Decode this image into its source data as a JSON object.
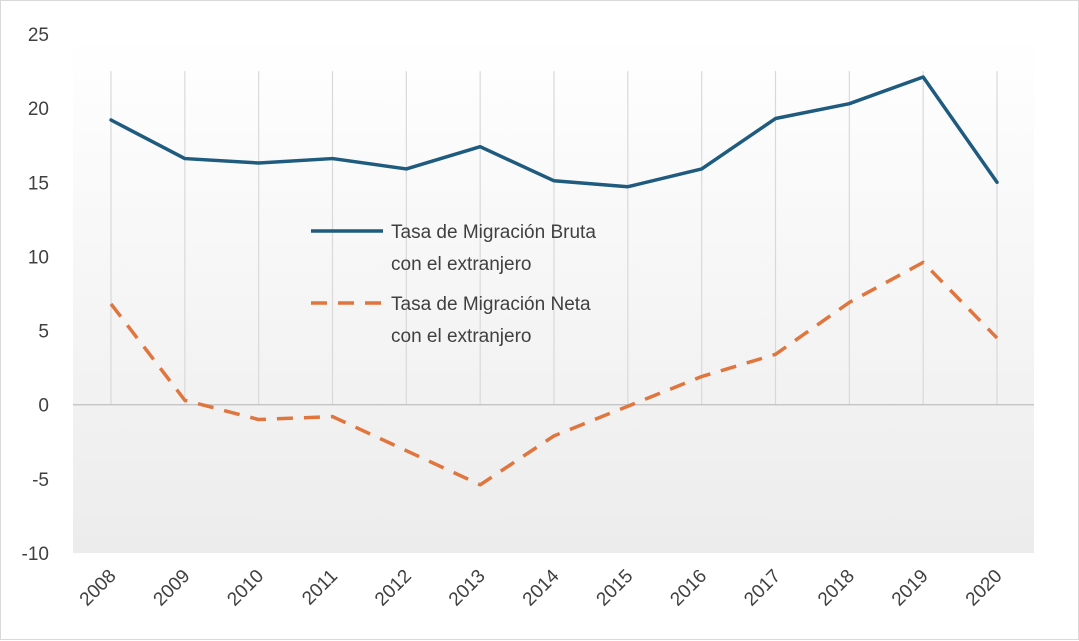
{
  "chart_data": {
    "type": "line",
    "title": "",
    "xlabel": "",
    "ylabel": "",
    "categories": [
      "2008",
      "2009",
      "2010",
      "2011",
      "2012",
      "2013",
      "2014",
      "2015",
      "2016",
      "2017",
      "2018",
      "2019",
      "2020"
    ],
    "ylim": [
      -10,
      25
    ],
    "yticks": [
      25,
      20,
      15,
      10,
      5,
      0,
      -5,
      -10
    ],
    "grid": "vertical lines at each category",
    "legend_position": "center",
    "series": [
      {
        "name_lines": [
          "Tasa de Migración Bruta",
          "con el extranjero"
        ],
        "color": "#1f5b7f",
        "style": "solid",
        "values": [
          19.2,
          16.6,
          16.3,
          16.6,
          15.9,
          17.4,
          15.1,
          14.7,
          15.9,
          19.3,
          20.3,
          22.1,
          15.0
        ]
      },
      {
        "name_lines": [
          "Tasa de Migración Neta",
          "con el extranjero"
        ],
        "color": "#e0753d",
        "style": "dashed",
        "values": [
          6.8,
          0.3,
          -1.0,
          -0.8,
          -3.1,
          -5.4,
          -2.1,
          -0.1,
          1.9,
          3.4,
          6.9,
          9.6,
          4.5
        ]
      }
    ]
  }
}
